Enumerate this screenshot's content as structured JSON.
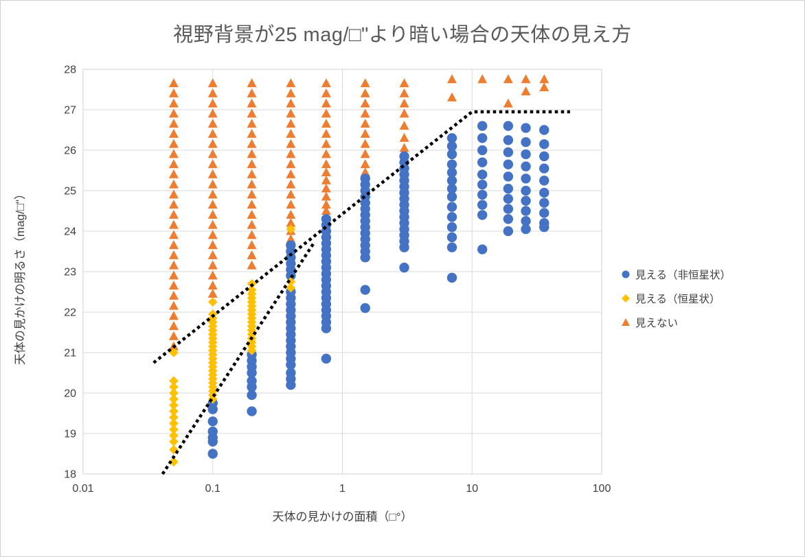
{
  "page": {
    "background": "#FFFFFF",
    "frame_border_color": "#D0D0D0"
  },
  "chart_data": {
    "type": "scatter",
    "title": "視野背景が25 mag/□\"より暗い場合の天体の見え方",
    "title_color": "#595959",
    "xlabel": "天体の見かけの面積（□°）",
    "ylabel": "天体の見かけの明るさ（mag/□\"）",
    "x_scale": "log",
    "xlim": [
      0.01,
      100
    ],
    "ylim": [
      18,
      28
    ],
    "x_ticks": [
      0.01,
      0.1,
      1,
      10,
      100
    ],
    "x_tick_labels": [
      "0.01",
      "0.1",
      "1",
      "10",
      "100"
    ],
    "y_ticks": [
      18,
      19,
      20,
      21,
      22,
      23,
      24,
      25,
      26,
      27,
      28
    ],
    "grid": true,
    "gridline_color": "#D9D9D9",
    "axis_text_color": "#3F3F3F",
    "legend_position": "right",
    "series": [
      {
        "name": "見える（非恒星状）",
        "marker": "circle",
        "color": "#4472C4",
        "columns": [
          {
            "x": 0.1,
            "y": [
              19.75,
              19.6,
              19.3,
              19.05,
              18.9,
              18.8,
              18.5
            ]
          },
          {
            "x": 0.2,
            "y": [
              20.95,
              20.8,
              20.65,
              20.5,
              20.3,
              20.15,
              19.95,
              19.55
            ]
          },
          {
            "x": 0.4,
            "y": [
              23.65,
              23.5,
              23.35,
              23.2,
              23.05,
              22.9,
              22.5,
              22.35,
              22.2,
              22.05,
              21.9,
              21.75,
              21.6,
              21.45,
              21.3,
              21.15,
              21.0,
              20.85,
              20.7,
              20.5,
              20.35,
              20.2
            ]
          },
          {
            "x": 0.75,
            "y": [
              24.3,
              24.15,
              24.0,
              23.85,
              23.7,
              23.55,
              23.4,
              23.25,
              23.1,
              22.95,
              22.8,
              22.65,
              22.5,
              22.35,
              22.2,
              22.05,
              21.9,
              21.75,
              21.6,
              20.85
            ]
          },
          {
            "x": 1.5,
            "y": [
              25.3,
              25.15,
              25.0,
              24.85,
              24.7,
              24.55,
              24.4,
              24.25,
              24.1,
              23.95,
              23.8,
              23.65,
              23.5,
              23.35,
              22.55,
              22.1
            ]
          },
          {
            "x": 3,
            "y": [
              25.85,
              25.7,
              25.55,
              25.4,
              25.25,
              25.1,
              24.95,
              24.8,
              24.65,
              24.5,
              24.35,
              24.2,
              24.05,
              23.9,
              23.75,
              23.6,
              23.1
            ]
          },
          {
            "x": 7,
            "y": [
              26.3,
              26.1,
              25.9,
              25.65,
              25.45,
              25.25,
              25.05,
              24.85,
              24.6,
              24.35,
              24.1,
              23.85,
              23.6,
              22.85
            ]
          },
          {
            "x": 12,
            "y": [
              26.6,
              26.3,
              26.0,
              25.7,
              25.4,
              25.15,
              24.9,
              24.65,
              24.4,
              23.55
            ]
          },
          {
            "x": 19,
            "y": [
              26.6,
              26.25,
              25.95,
              25.65,
              25.35,
              25.05,
              24.8,
              24.55,
              24.3,
              24.0
            ]
          },
          {
            "x": 26,
            "y": [
              26.55,
              26.2,
              25.9,
              25.6,
              25.3,
              25.0,
              24.75,
              24.5,
              24.25,
              24.05
            ]
          },
          {
            "x": 36,
            "y": [
              26.5,
              26.15,
              25.85,
              25.55,
              25.25,
              24.95,
              24.7,
              24.45,
              24.2,
              24.1
            ]
          }
        ]
      },
      {
        "name": "見える（恒星状）",
        "marker": "diamond",
        "color": "#FFC000",
        "columns": [
          {
            "x": 0.05,
            "y": [
              21.0,
              20.3,
              20.15,
              20.0,
              19.85,
              19.7,
              19.55,
              19.4,
              19.25,
              19.1,
              18.95,
              18.8,
              18.6,
              18.3
            ]
          },
          {
            "x": 0.1,
            "y": [
              22.25,
              21.95,
              21.85,
              21.75,
              21.65,
              21.55,
              21.45,
              21.35,
              21.25,
              21.15,
              21.05,
              20.95,
              20.85,
              20.75,
              20.65,
              20.55,
              20.45,
              20.35,
              20.25,
              20.15,
              20.05,
              19.95,
              19.85
            ]
          },
          {
            "x": 0.2,
            "y": [
              22.7,
              22.55,
              22.45,
              22.35,
              22.25,
              22.15,
              22.05,
              21.95,
              21.85,
              21.75,
              21.65,
              21.55,
              21.45,
              21.35,
              21.25,
              21.15,
              21.05
            ]
          },
          {
            "x": 0.4,
            "y": [
              24.05,
              22.75,
              22.6
            ]
          }
        ]
      },
      {
        "name": "見えない",
        "marker": "triangle",
        "color": "#ED7D31",
        "columns": [
          {
            "x": 0.05,
            "y": [
              27.65,
              27.4,
              27.15,
              26.9,
              26.65,
              26.4,
              26.15,
              25.9,
              25.65,
              25.4,
              25.15,
              24.9,
              24.65,
              24.4,
              24.15,
              23.9,
              23.65,
              23.4,
              23.15,
              22.9,
              22.65,
              22.4,
              22.15,
              21.9,
              21.65,
              21.4,
              21.15
            ]
          },
          {
            "x": 0.1,
            "y": [
              27.65,
              27.4,
              27.15,
              26.9,
              26.65,
              26.4,
              26.15,
              25.9,
              25.65,
              25.4,
              25.15,
              24.9,
              24.65,
              24.4,
              24.15,
              23.9,
              23.65,
              23.4,
              23.15,
              22.9,
              22.65,
              22.45
            ]
          },
          {
            "x": 0.2,
            "y": [
              27.65,
              27.4,
              27.15,
              26.9,
              26.65,
              26.4,
              26.15,
              25.9,
              25.65,
              25.4,
              25.15,
              24.9,
              24.65,
              24.4,
              24.15,
              23.9,
              23.65,
              23.4,
              23.15
            ]
          },
          {
            "x": 0.4,
            "y": [
              27.65,
              27.4,
              27.15,
              26.9,
              26.65,
              26.4,
              26.15,
              25.9,
              25.65,
              25.4,
              25.15,
              24.9,
              24.65,
              24.4,
              24.2,
              24.0,
              23.8,
              23.55
            ]
          },
          {
            "x": 0.75,
            "y": [
              27.65,
              27.4,
              27.15,
              26.9,
              26.65,
              26.4,
              26.15,
              25.9,
              25.65,
              25.45,
              25.25,
              25.05,
              24.85,
              24.65,
              24.5,
              24.35
            ]
          },
          {
            "x": 1.5,
            "y": [
              27.65,
              27.4,
              27.15,
              26.9,
              26.65,
              26.4,
              26.15,
              25.9,
              25.65,
              25.45
            ]
          },
          {
            "x": 3,
            "y": [
              27.65,
              27.4,
              27.15,
              26.9,
              26.6,
              26.3,
              26.05
            ]
          },
          {
            "x": 7,
            "y": [
              27.75,
              27.3
            ]
          },
          {
            "x": 12,
            "y": [
              27.75
            ]
          },
          {
            "x": 19,
            "y": [
              27.75,
              27.15
            ]
          },
          {
            "x": 26,
            "y": [
              27.75,
              27.45
            ]
          },
          {
            "x": 36,
            "y": [
              27.75,
              27.55
            ]
          }
        ]
      }
    ],
    "lines": [
      {
        "name": "detection-limit-extended",
        "style": "dotted",
        "color": "#000000",
        "points": [
          [
            0.035,
            20.75
          ],
          [
            10,
            26.95
          ],
          [
            57,
            26.95
          ]
        ]
      },
      {
        "name": "detection-limit-stellar",
        "style": "dotted",
        "color": "#000000",
        "points": [
          [
            0.041,
            18.0
          ],
          [
            0.6,
            23.7
          ]
        ]
      }
    ]
  }
}
